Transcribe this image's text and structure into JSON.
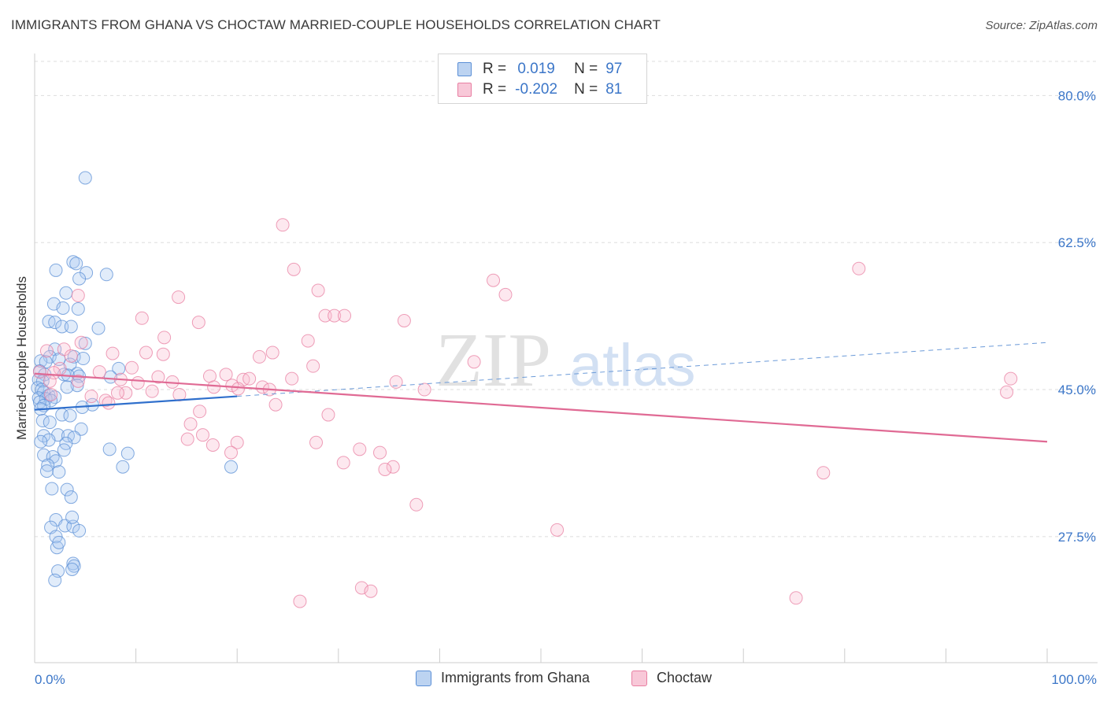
{
  "title": "IMMIGRANTS FROM GHANA VS CHOCTAW MARRIED-COUPLE HOUSEHOLDS CORRELATION CHART",
  "source": "Source: ZipAtlas.com",
  "watermark": {
    "zip": "ZIP",
    "atlas": "atlas"
  },
  "legend_stats": [
    {
      "r_label": "R =",
      "r_value": "0.019",
      "n_label": "N =",
      "n_value": "97"
    },
    {
      "r_label": "R =",
      "r_value": "-0.202",
      "n_label": "N =",
      "n_value": "81"
    }
  ],
  "chart_data": {
    "type": "scatter",
    "title": "IMMIGRANTS FROM GHANA VS CHOCTAW MARRIED-COUPLE HOUSEHOLDS CORRELATION CHART",
    "xlabel": "",
    "ylabel": "Married-couple Households",
    "xlim": [
      0,
      100
    ],
    "ylim": [
      12.5,
      85
    ],
    "x_tick_labels": [
      {
        "value": 0,
        "label": "0.0%"
      },
      {
        "value": 100,
        "label": "100.0%"
      }
    ],
    "y_ticks": [
      {
        "value": 80.0,
        "label": "80.0%"
      },
      {
        "value": 62.5,
        "label": "62.5%"
      },
      {
        "value": 45.0,
        "label": "45.0%"
      },
      {
        "value": 27.5,
        "label": "27.5%"
      }
    ],
    "grid": true,
    "colors": {
      "ghana": "#5b8fd6",
      "choctaw": "#e87fa2",
      "tick": "#3b76c8",
      "grid": "#dddddd"
    },
    "series": [
      {
        "name": "Immigrants from Ghana",
        "color": "#5b8fd6",
        "trend": {
          "x0": 0,
          "y0": 42.6,
          "x1": 20,
          "y1": 44.2,
          "dash_x1": 100,
          "dash_y1": 50.6
        },
        "points": [
          [
            5.0,
            70.2
          ],
          [
            3.8,
            60.2
          ],
          [
            4.1,
            60.0
          ],
          [
            2.1,
            59.2
          ],
          [
            5.1,
            58.9
          ],
          [
            7.1,
            58.7
          ],
          [
            4.4,
            58.2
          ],
          [
            3.1,
            56.5
          ],
          [
            1.9,
            55.2
          ],
          [
            2.8,
            54.7
          ],
          [
            4.3,
            54.6
          ],
          [
            1.4,
            53.1
          ],
          [
            2.0,
            53.0
          ],
          [
            2.7,
            52.5
          ],
          [
            3.6,
            52.5
          ],
          [
            6.3,
            52.3
          ],
          [
            5.0,
            50.5
          ],
          [
            2.0,
            49.8
          ],
          [
            1.5,
            48.9
          ],
          [
            3.9,
            48.9
          ],
          [
            4.8,
            48.7
          ],
          [
            2.4,
            48.6
          ],
          [
            0.6,
            48.4
          ],
          [
            1.1,
            48.3
          ],
          [
            3.5,
            48.0
          ],
          [
            8.3,
            47.5
          ],
          [
            0.5,
            47.2
          ],
          [
            4.2,
            46.9
          ],
          [
            1.0,
            46.8
          ],
          [
            2.9,
            46.8
          ],
          [
            3.3,
            46.7
          ],
          [
            4.4,
            46.6
          ],
          [
            7.5,
            46.5
          ],
          [
            0.4,
            46.2
          ],
          [
            0.8,
            46.0
          ],
          [
            4.2,
            45.5
          ],
          [
            0.3,
            45.2
          ],
          [
            3.2,
            45.3
          ],
          [
            0.7,
            45.0
          ],
          [
            0.9,
            44.7
          ],
          [
            1.4,
            44.3
          ],
          [
            2.0,
            44.1
          ],
          [
            0.4,
            44.0
          ],
          [
            1.1,
            43.9
          ],
          [
            1.6,
            43.7
          ],
          [
            0.5,
            43.5
          ],
          [
            0.9,
            43.1
          ],
          [
            5.7,
            43.2
          ],
          [
            0.6,
            42.7
          ],
          [
            4.7,
            42.9
          ],
          [
            2.7,
            42.0
          ],
          [
            3.5,
            41.9
          ],
          [
            0.8,
            41.3
          ],
          [
            1.5,
            41.1
          ],
          [
            4.6,
            40.3
          ],
          [
            0.9,
            39.5
          ],
          [
            2.3,
            39.6
          ],
          [
            3.3,
            39.5
          ],
          [
            3.9,
            39.3
          ],
          [
            1.4,
            39.0
          ],
          [
            0.6,
            38.8
          ],
          [
            3.1,
            38.6
          ],
          [
            2.9,
            37.8
          ],
          [
            7.4,
            37.9
          ],
          [
            9.2,
            37.4
          ],
          [
            0.9,
            37.2
          ],
          [
            1.8,
            37.0
          ],
          [
            2.1,
            36.5
          ],
          [
            1.3,
            36.0
          ],
          [
            8.7,
            35.8
          ],
          [
            19.4,
            35.8
          ],
          [
            1.2,
            35.3
          ],
          [
            2.4,
            35.2
          ],
          [
            1.7,
            33.2
          ],
          [
            3.2,
            33.1
          ],
          [
            3.6,
            32.2
          ],
          [
            2.1,
            29.5
          ],
          [
            3.0,
            28.8
          ],
          [
            1.6,
            28.6
          ],
          [
            3.8,
            28.7
          ],
          [
            4.4,
            28.2
          ],
          [
            3.7,
            29.8
          ],
          [
            2.1,
            27.5
          ],
          [
            2.2,
            26.2
          ],
          [
            2.4,
            26.8
          ],
          [
            3.8,
            24.3
          ],
          [
            3.9,
            24.0
          ],
          [
            2.3,
            23.4
          ],
          [
            3.7,
            23.6
          ],
          [
            2.0,
            22.3
          ]
        ]
      },
      {
        "name": "Choctaw",
        "color": "#e87fa2",
        "trend": {
          "x0": 0,
          "y0": 46.9,
          "x1": 100,
          "y1": 38.8
        },
        "points": [
          [
            24.5,
            64.6
          ],
          [
            25.6,
            59.3
          ],
          [
            81.4,
            59.4
          ],
          [
            45.3,
            58.0
          ],
          [
            28.0,
            56.8
          ],
          [
            46.5,
            56.3
          ],
          [
            14.2,
            56.0
          ],
          [
            4.3,
            56.2
          ],
          [
            28.7,
            53.8
          ],
          [
            29.6,
            53.8
          ],
          [
            30.6,
            53.8
          ],
          [
            10.6,
            53.5
          ],
          [
            16.2,
            53.0
          ],
          [
            36.5,
            53.2
          ],
          [
            12.8,
            51.2
          ],
          [
            27.0,
            50.8
          ],
          [
            4.6,
            50.6
          ],
          [
            2.9,
            49.8
          ],
          [
            3.6,
            49.0
          ],
          [
            1.2,
            49.6
          ],
          [
            7.7,
            49.3
          ],
          [
            11.0,
            49.4
          ],
          [
            12.7,
            49.2
          ],
          [
            23.5,
            49.4
          ],
          [
            22.2,
            48.9
          ],
          [
            27.5,
            47.8
          ],
          [
            43.4,
            48.3
          ],
          [
            2.5,
            47.5
          ],
          [
            0.5,
            47.1
          ],
          [
            9.6,
            47.6
          ],
          [
            6.4,
            47.1
          ],
          [
            1.9,
            47.0
          ],
          [
            17.3,
            46.6
          ],
          [
            18.9,
            46.8
          ],
          [
            12.2,
            46.5
          ],
          [
            8.5,
            46.2
          ],
          [
            20.6,
            46.2
          ],
          [
            21.2,
            46.3
          ],
          [
            25.4,
            46.3
          ],
          [
            1.5,
            46.0
          ],
          [
            4.3,
            46.0
          ],
          [
            13.6,
            45.9
          ],
          [
            35.7,
            45.9
          ],
          [
            10.2,
            45.8
          ],
          [
            17.7,
            45.3
          ],
          [
            19.5,
            45.5
          ],
          [
            22.5,
            45.3
          ],
          [
            20.1,
            45.1
          ],
          [
            23.2,
            45.0
          ],
          [
            38.5,
            45.0
          ],
          [
            9.0,
            44.6
          ],
          [
            11.6,
            44.8
          ],
          [
            14.3,
            44.4
          ],
          [
            8.2,
            44.6
          ],
          [
            5.6,
            44.2
          ],
          [
            1.6,
            44.4
          ],
          [
            7.0,
            43.7
          ],
          [
            7.3,
            43.4
          ],
          [
            23.8,
            43.2
          ],
          [
            96.4,
            46.3
          ],
          [
            96.0,
            44.7
          ],
          [
            16.3,
            42.4
          ],
          [
            29.0,
            42.0
          ],
          [
            15.4,
            40.9
          ],
          [
            16.6,
            39.6
          ],
          [
            15.1,
            39.1
          ],
          [
            17.6,
            38.4
          ],
          [
            20.0,
            38.7
          ],
          [
            27.8,
            38.7
          ],
          [
            19.4,
            37.5
          ],
          [
            34.1,
            37.5
          ],
          [
            32.1,
            37.9
          ],
          [
            30.5,
            36.3
          ],
          [
            35.4,
            35.8
          ],
          [
            77.9,
            35.1
          ],
          [
            34.6,
            35.5
          ],
          [
            37.7,
            31.3
          ],
          [
            51.6,
            28.3
          ],
          [
            32.3,
            21.4
          ],
          [
            33.2,
            21.0
          ],
          [
            26.2,
            19.8
          ],
          [
            75.2,
            20.2
          ]
        ]
      }
    ]
  }
}
